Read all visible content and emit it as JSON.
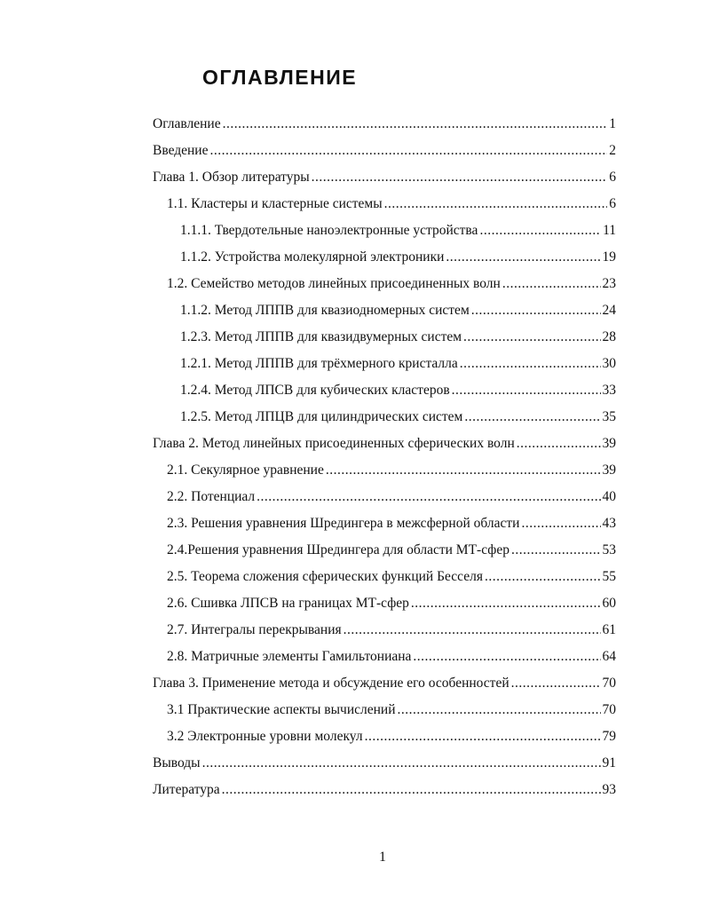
{
  "title": "ОГЛАВЛЕНИЕ",
  "entries": [
    {
      "level": 0,
      "text": "Оглавление",
      "page": "1"
    },
    {
      "level": 0,
      "text": "Введение",
      "page": "2"
    },
    {
      "level": 0,
      "text": "Глава 1. Обзор литературы",
      "page": "6"
    },
    {
      "level": 1,
      "text": "1.1. Кластеры и кластерные системы",
      "page": "6"
    },
    {
      "level": 2,
      "text": "1.1.1. Твердотельные наноэлектронные устройства",
      "page": "11"
    },
    {
      "level": 2,
      "text": "1.1.2. Устройства молекулярной электроники",
      "page": "19"
    },
    {
      "level": 1,
      "text": "1.2. Семейство методов линейных присоединенных волн",
      "page": "23"
    },
    {
      "level": 2,
      "text": "1.1.2. Метод ЛППВ для квазиодномерных систем",
      "page": "24"
    },
    {
      "level": 2,
      "text": "1.2.3. Метод ЛППВ для квазидвумерных систем",
      "page": "28"
    },
    {
      "level": 2,
      "text": "1.2.1. Метод ЛППВ для трёхмерного кристалла",
      "page": "30"
    },
    {
      "level": 2,
      "text": "1.2.4. Метод ЛПСВ для кубических кластеров",
      "page": "33"
    },
    {
      "level": 2,
      "text": "1.2.5. Метод ЛПЦВ для цилиндрических систем",
      "page": "35"
    },
    {
      "level": 0,
      "text": "Глава 2. Метод линейных присоединенных сферических волн",
      "page": "39"
    },
    {
      "level": 1,
      "text": "2.1. Секулярное уравнение",
      "page": "39"
    },
    {
      "level": 1,
      "text": "2.2. Потенциал",
      "page": "40"
    },
    {
      "level": 1,
      "text": "2.3. Решения уравнения Шредингера в межсферной области",
      "page": "43"
    },
    {
      "level": 1,
      "text": "2.4.Решения уравнения Шредингера для области МТ-сфер",
      "page": "53"
    },
    {
      "level": 1,
      "text": "2.5. Теорема сложения сферических функций Бесселя",
      "page": "55"
    },
    {
      "level": 1,
      "text": "2.6. Сшивка ЛПСВ на границах МТ-сфер",
      "page": "60"
    },
    {
      "level": 1,
      "text": "2.7. Интегралы перекрывания",
      "page": "61"
    },
    {
      "level": 1,
      "text": "2.8. Матричные элементы Гамильтониана",
      "page": "64"
    },
    {
      "level": 0,
      "text": "Глава 3. Применение метода и обсуждение его особенностей",
      "page": "70"
    },
    {
      "level": 1,
      "text": "3.1 Практические аспекты вычислений",
      "page": "70"
    },
    {
      "level": 1,
      "text": "3.2 Электронные уровни молекул",
      "page": "79"
    },
    {
      "level": 0,
      "text": "Выводы",
      "page": "91"
    },
    {
      "level": 0,
      "text": "Литература",
      "page": "93"
    }
  ],
  "page_number": "1"
}
